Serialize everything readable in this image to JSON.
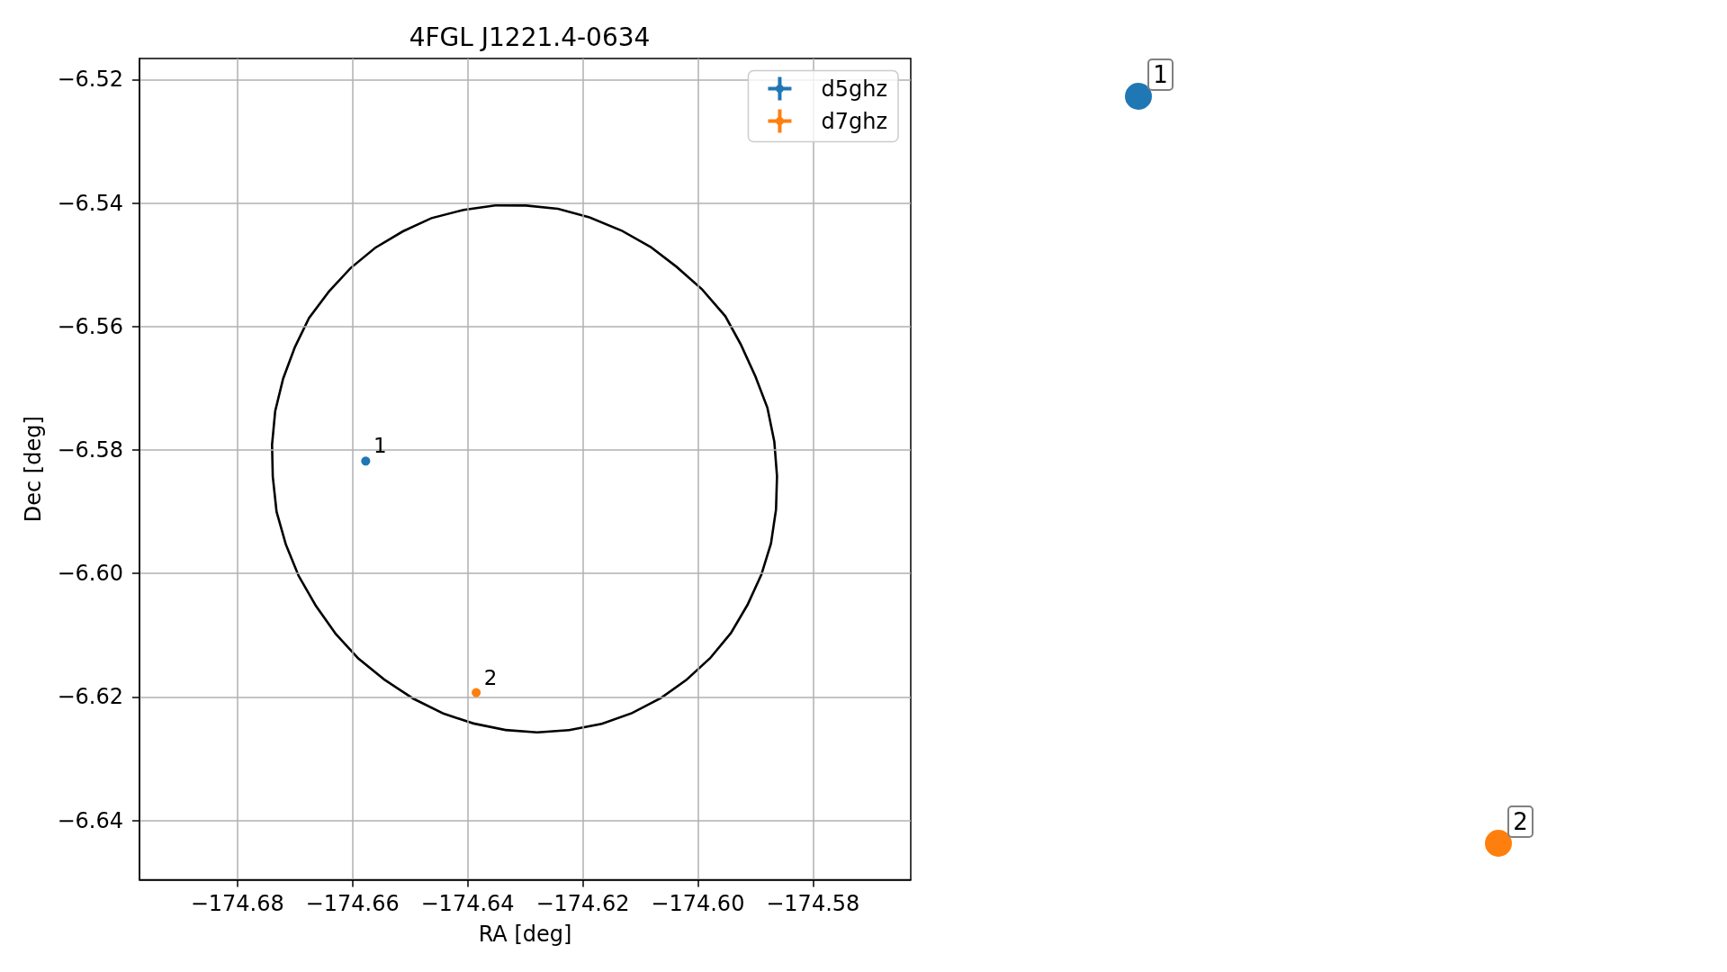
{
  "chart_data": {
    "type": "scatter",
    "title": "4FGL J1221.4-0634",
    "xlabel": "RA [deg]",
    "ylabel": "Dec [deg]",
    "series": [
      {
        "name": "d5ghz",
        "color": "#1f77b4",
        "x": [
          -174.6577
        ],
        "values": [
          -6.5818
        ]
      },
      {
        "name": "d7ghz",
        "color": "#ff7f0e",
        "x": [
          -174.6385
        ],
        "values": [
          -6.6193
        ]
      }
    ],
    "annotations": [
      {
        "text": "1",
        "x": -174.6577,
        "y": -6.5818
      },
      {
        "text": "2",
        "x": -174.6385,
        "y": -6.6193
      },
      "1",
      "2"
    ],
    "xlim": [
      -174.697,
      -174.563
    ],
    "ylim": [
      -6.6496,
      -6.5166
    ],
    "xticks": [
      {
        "value": -174.68,
        "label": "−174.68"
      },
      {
        "value": -174.66,
        "label": "−174.66"
      },
      {
        "value": -174.64,
        "label": "−174.64"
      },
      {
        "value": -174.62,
        "label": "−174.62"
      },
      {
        "value": -174.6,
        "label": "−174.60"
      },
      {
        "value": -174.58,
        "label": "−174.58"
      }
    ],
    "yticks": [
      {
        "value": -6.64,
        "label": "−6.64"
      },
      {
        "value": -6.62,
        "label": "−6.62"
      },
      {
        "value": -6.6,
        "label": "−6.60"
      },
      {
        "value": -6.58,
        "label": "−6.58"
      },
      {
        "value": -6.56,
        "label": "−6.56"
      },
      {
        "value": -6.54,
        "label": "−6.54"
      },
      {
        "value": -6.52,
        "label": "−6.52"
      }
    ],
    "grid": true,
    "legend": "top right",
    "marker": "circle"
  }
}
